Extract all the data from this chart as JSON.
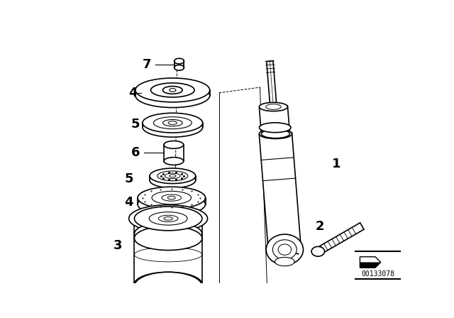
{
  "background_color": "#ffffff",
  "line_color": "#000000",
  "part_number": "00133078",
  "fig_width": 6.4,
  "fig_height": 4.48,
  "dpi": 100
}
